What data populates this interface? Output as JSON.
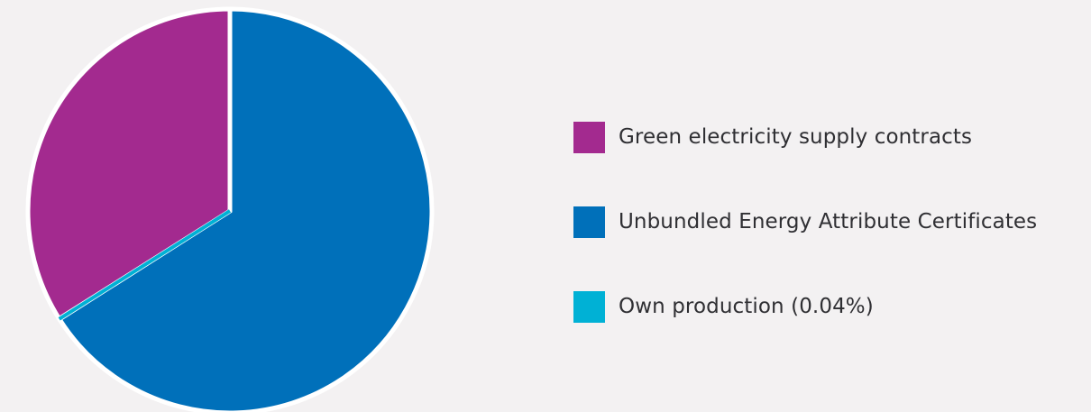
{
  "chart_data": {
    "type": "pie",
    "series": [
      {
        "name": "Green electricity supply contracts",
        "value": 33.96,
        "color": "#a32a8f"
      },
      {
        "name": "Unbundled Energy Attribute Certificates",
        "value": 66.0,
        "color": "#0070ba"
      },
      {
        "name": "Own production (0.04%)",
        "value": 0.04,
        "color": "#00b1d5"
      }
    ],
    "legend_position": "right",
    "background": "#f3f1f2",
    "separator_color": "#ffffff"
  }
}
